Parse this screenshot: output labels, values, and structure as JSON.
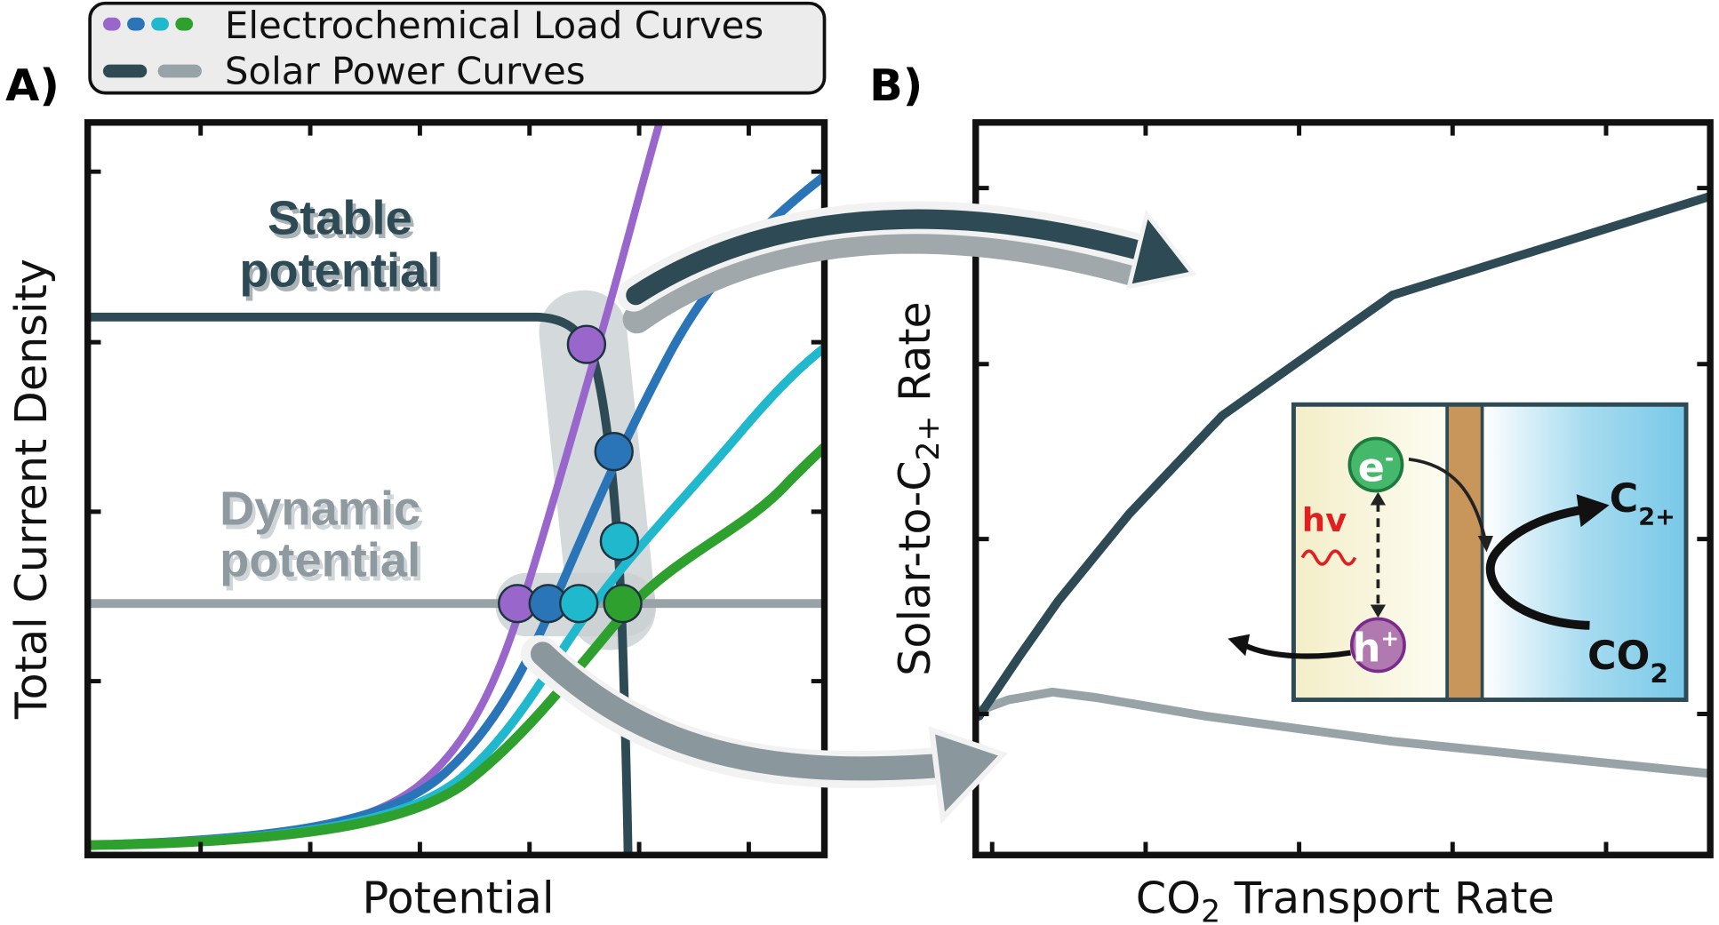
{
  "panel_a": {
    "label": "A)",
    "y_axis": "Total Current Density",
    "x_axis": "Potential",
    "stable": [
      "Stable",
      "potential"
    ],
    "dynamic": [
      "Dynamic",
      "potential"
    ]
  },
  "panel_b": {
    "label": "B)",
    "y_axis": {
      "main": "Solar-to-C",
      "sub": "2+",
      "rest": " Rate"
    },
    "x_axis": {
      "main": "CO",
      "sub": "2",
      "rest": " Transport Rate"
    }
  },
  "legend": [
    "Electrochemical Load Curves",
    "Solar Power Curves"
  ],
  "inset": {
    "electron": {
      "main": "e",
      "sup": "-"
    },
    "hole": {
      "main": "h",
      "sup": "+"
    },
    "light": "hv",
    "product": {
      "main": "C",
      "sub": "2+"
    },
    "reactant": {
      "main": "CO",
      "sub": "2"
    }
  }
}
